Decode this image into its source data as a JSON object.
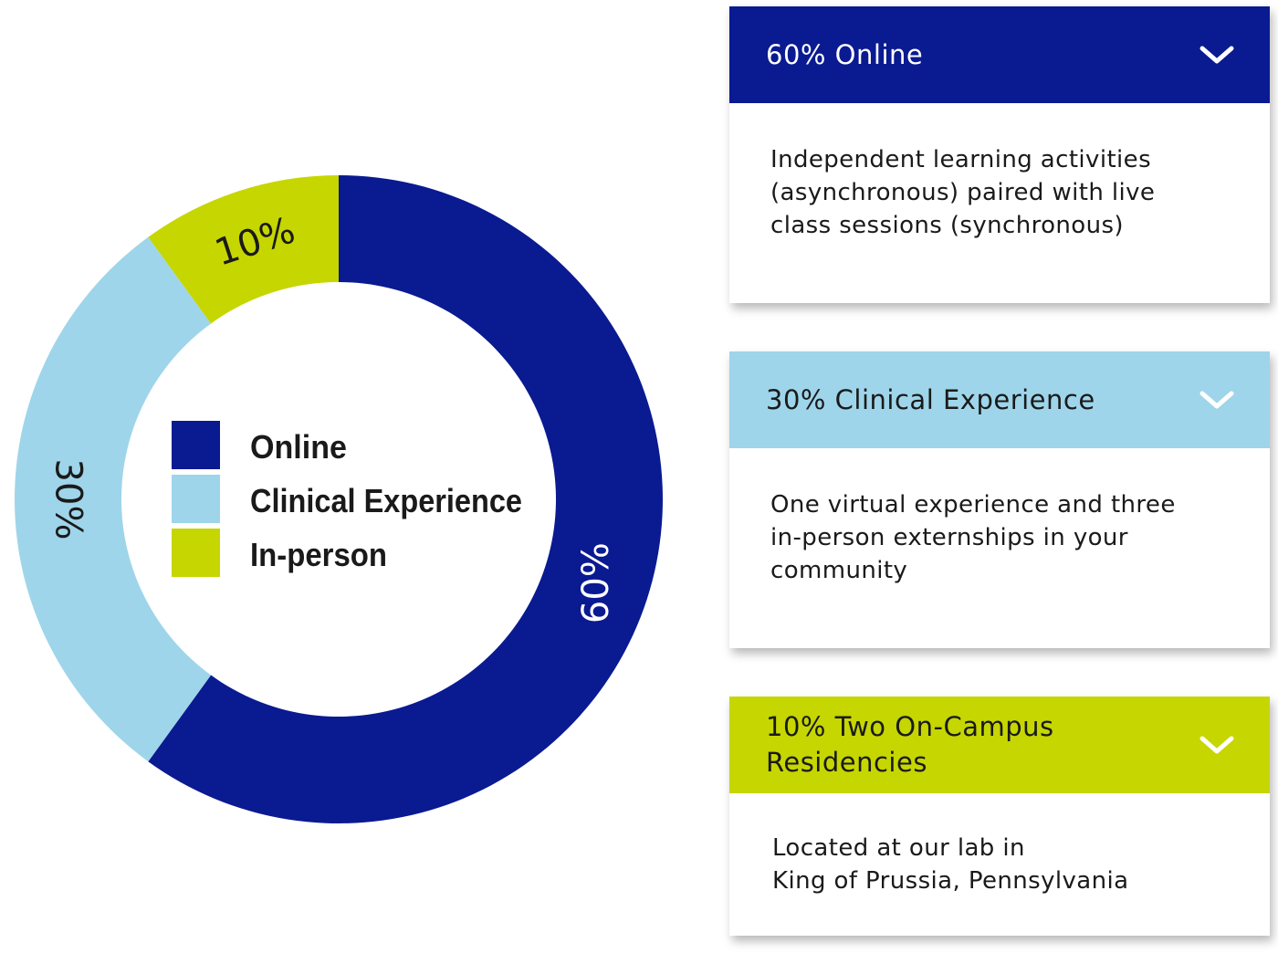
{
  "colors": {
    "online": "#0a1a91",
    "clinical": "#9ed5ea",
    "inperson": "#c6d600"
  },
  "chart_data": {
    "type": "pie",
    "style": "donut",
    "slices": [
      {
        "name": "Online",
        "value": 60,
        "label": "60%",
        "color": "#0a1a91"
      },
      {
        "name": "Clinical Experience",
        "value": 30,
        "label": "30%",
        "color": "#9ed5ea"
      },
      {
        "name": "In-person",
        "value": 10,
        "label": "10%",
        "color": "#c6d600"
      }
    ],
    "legend": {
      "placement": "center",
      "items": [
        {
          "label": "Online",
          "color": "#0a1a91"
        },
        {
          "label": "Clinical Experience",
          "color": "#9ed5ea"
        },
        {
          "label": "In-person",
          "color": "#c6d600"
        }
      ]
    }
  },
  "accordion": [
    {
      "title": "60% Online",
      "body": [
        "Independent learning activities",
        "(asynchronous) paired with live",
        "class sessions (synchronous)"
      ],
      "header_color": "#0a1a91",
      "text_color": "#ffffff",
      "icon": "chevron-down-icon",
      "expanded": true
    },
    {
      "title": "30% Clinical Experience",
      "body": [
        "One virtual experience and three",
        "in-person externships in your",
        "community"
      ],
      "header_color": "#9ed5ea",
      "text_color": "#1a1a1a",
      "icon": "chevron-down-icon",
      "expanded": true
    },
    {
      "title": "10% Two On-Campus Residencies",
      "body": [
        "Located at our lab in",
        "King of Prussia, Pennsylvania"
      ],
      "header_color": "#c6d600",
      "text_color": "#1a1a1a",
      "icon": "chevron-down-icon",
      "expanded": true
    }
  ]
}
